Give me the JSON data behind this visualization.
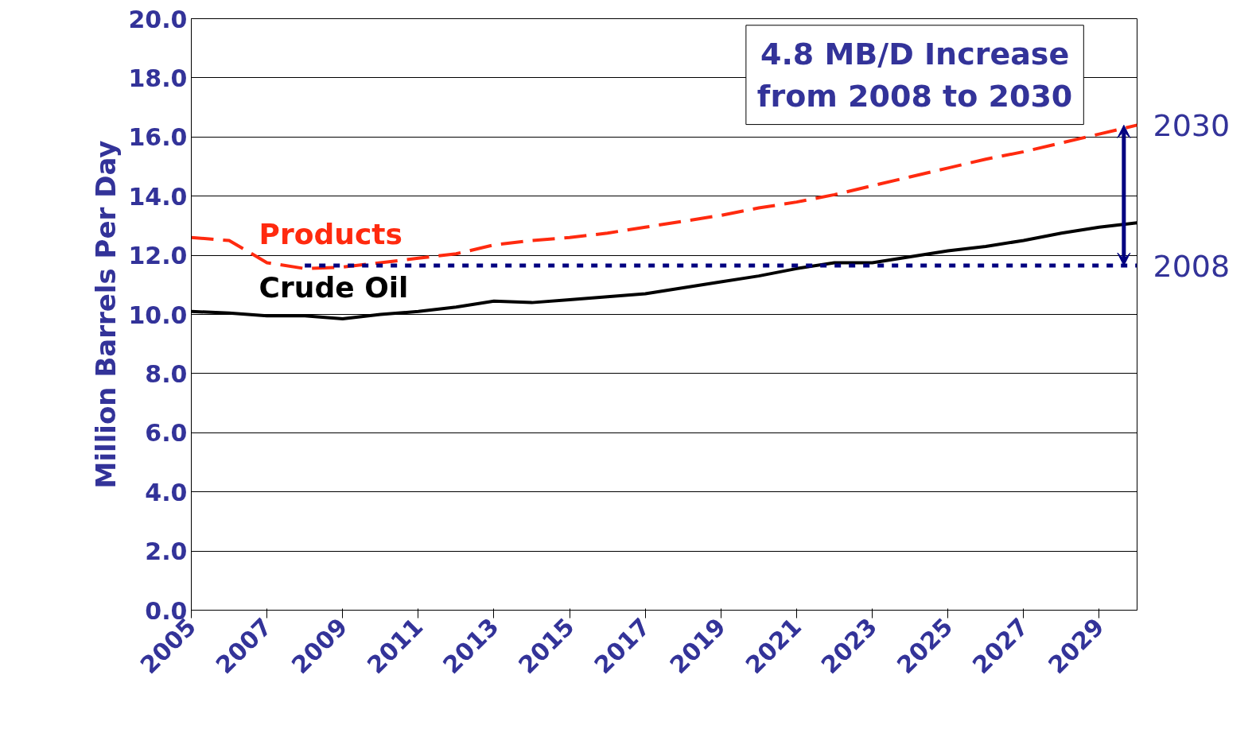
{
  "chart_data": {
    "type": "line",
    "ylabel": "Million Barrels Per Day",
    "x": [
      2005,
      2006,
      2007,
      2008,
      2009,
      2010,
      2011,
      2012,
      2013,
      2014,
      2015,
      2016,
      2017,
      2018,
      2019,
      2020,
      2021,
      2022,
      2023,
      2024,
      2025,
      2026,
      2027,
      2028,
      2029,
      2030
    ],
    "series": [
      {
        "name": "Products",
        "color": "#ff2a0f",
        "line_style": "dashed",
        "values": [
          12.6,
          12.5,
          11.75,
          11.55,
          11.6,
          11.75,
          11.9,
          12.05,
          12.35,
          12.5,
          12.6,
          12.75,
          12.95,
          13.15,
          13.35,
          13.6,
          13.8,
          14.05,
          14.35,
          14.65,
          14.95,
          15.25,
          15.5,
          15.8,
          16.1,
          16.4
        ]
      },
      {
        "name": "Crude Oil",
        "color": "#000000",
        "line_style": "solid",
        "values": [
          10.1,
          10.05,
          9.95,
          9.95,
          9.85,
          10.0,
          10.1,
          10.25,
          10.45,
          10.4,
          10.5,
          10.6,
          10.7,
          10.9,
          11.1,
          11.3,
          11.55,
          11.75,
          11.75,
          11.95,
          12.15,
          12.3,
          12.5,
          12.75,
          12.95,
          13.1
        ]
      },
      {
        "color": "#000080",
        "line_style": "dotted",
        "x": [
          2008,
          2030
        ],
        "values": [
          11.65,
          11.65
        ]
      }
    ],
    "xlim": [
      2005,
      2030
    ],
    "ylim": [
      0,
      20
    ],
    "xticks": [
      2005,
      2007,
      2009,
      2011,
      2013,
      2015,
      2017,
      2019,
      2021,
      2023,
      2025,
      2027,
      2029
    ],
    "yticks": [
      {
        "value": 0,
        "label": "0.0"
      },
      {
        "value": 2,
        "label": "2.0"
      },
      {
        "value": 4,
        "label": "4.0"
      },
      {
        "value": 6,
        "label": "6.0"
      },
      {
        "value": 8,
        "label": "8.0"
      },
      {
        "value": 10,
        "label": "10.0"
      },
      {
        "value": 12,
        "label": "12.0"
      },
      {
        "value": 14,
        "label": "14.0"
      },
      {
        "value": 16,
        "label": "16.0"
      },
      {
        "value": 18,
        "label": "18.0"
      },
      {
        "value": 20,
        "label": "20.0"
      }
    ],
    "annotations": [
      "4.8 MB/D Increase\nfrom 2008 to 2030",
      {
        "text": "2030",
        "x": 2030,
        "y": 16.4
      },
      {
        "text": "2008",
        "x": 2030,
        "y": 11.65
      }
    ],
    "grid": "y",
    "marker": "none"
  }
}
